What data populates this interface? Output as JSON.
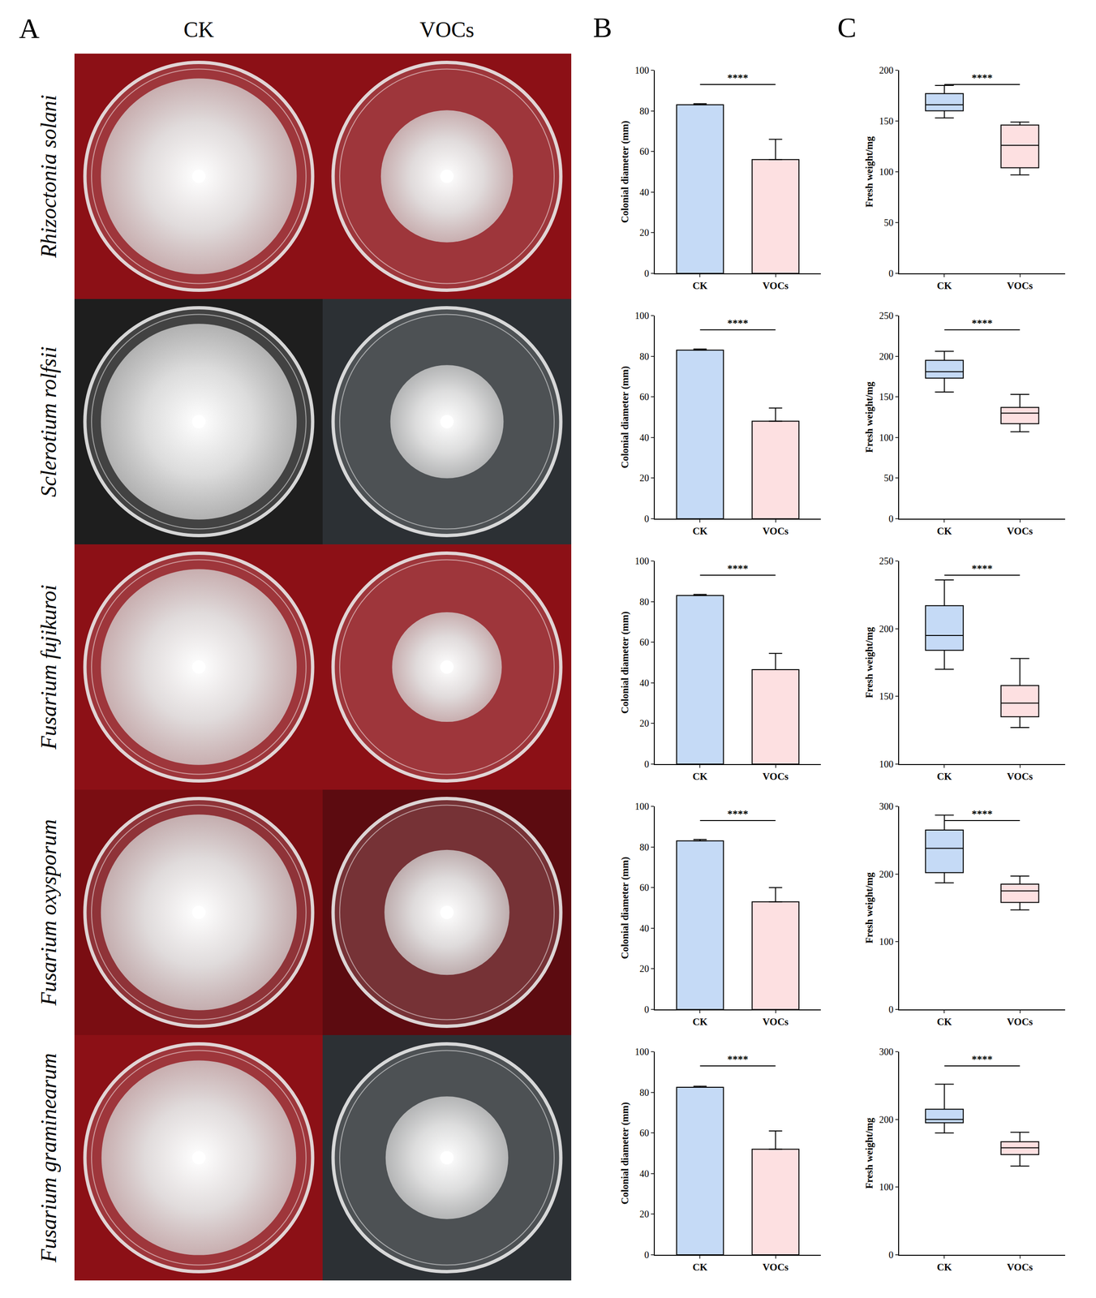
{
  "photo_panel": {
    "label": "A",
    "columns": [
      "CK",
      "VOCs"
    ]
  },
  "chart_data": [
    {
      "panel": "B",
      "species": "Rhizoctonia solani",
      "type": "bar",
      "categories": [
        "CK",
        "VOCs"
      ],
      "values": [
        83,
        56
      ],
      "errors": [
        0.5,
        10
      ],
      "colors": [
        "#c5daf6",
        "#fde0e1"
      ],
      "ylim": [
        0,
        100
      ],
      "yticks": [
        0,
        20,
        40,
        60,
        80,
        100
      ],
      "y_label": "Colonial diameter (mm)",
      "significance": "****"
    },
    {
      "panel": "C",
      "species": "Rhizoctonia solani",
      "type": "box",
      "categories": [
        "CK",
        "VOCs"
      ],
      "min": [
        153,
        97
      ],
      "q1": [
        160,
        104
      ],
      "median": [
        166,
        126
      ],
      "q3": [
        177,
        146
      ],
      "max": [
        185,
        149
      ],
      "colors": [
        "#c5daf6",
        "#fde0e1"
      ],
      "ylim": [
        0,
        200
      ],
      "yticks": [
        0,
        50,
        100,
        150,
        200
      ],
      "y_label": "Fresh weight/mg",
      "significance": "****"
    },
    {
      "panel": "B",
      "species": "Sclerotium rolfsii",
      "type": "bar",
      "categories": [
        "CK",
        "VOCs"
      ],
      "values": [
        83,
        48
      ],
      "errors": [
        0.5,
        6.5
      ],
      "colors": [
        "#c5daf6",
        "#fde0e1"
      ],
      "ylim": [
        0,
        100
      ],
      "yticks": [
        0,
        20,
        40,
        60,
        80,
        100
      ],
      "y_label": "Colonial diameter (mm)",
      "significance": "****"
    },
    {
      "panel": "C",
      "species": "Sclerotium rolfsii",
      "type": "box",
      "categories": [
        "CK",
        "VOCs"
      ],
      "min": [
        156,
        107
      ],
      "q1": [
        173,
        117
      ],
      "median": [
        181,
        130
      ],
      "q3": [
        195,
        137
      ],
      "max": [
        206,
        153
      ],
      "colors": [
        "#c5daf6",
        "#fde0e1"
      ],
      "ylim": [
        0,
        250
      ],
      "yticks": [
        0,
        50,
        100,
        150,
        200,
        250
      ],
      "y_label": "Fresh weight/mg",
      "significance": "****"
    },
    {
      "panel": "B",
      "species": "Fusarium fujikuroi",
      "type": "bar",
      "categories": [
        "CK",
        "VOCs"
      ],
      "values": [
        83,
        46.5
      ],
      "errors": [
        0.5,
        8
      ],
      "colors": [
        "#c5daf6",
        "#fde0e1"
      ],
      "ylim": [
        0,
        100
      ],
      "yticks": [
        0,
        20,
        40,
        60,
        80,
        100
      ],
      "y_label": "Colonial diameter (mm)",
      "significance": "****"
    },
    {
      "panel": "C",
      "species": "Fusarium fujikuroi",
      "type": "box",
      "categories": [
        "CK",
        "VOCs"
      ],
      "min": [
        170,
        127
      ],
      "q1": [
        184,
        135
      ],
      "median": [
        195,
        145
      ],
      "q3": [
        217,
        158
      ],
      "max": [
        236,
        178
      ],
      "colors": [
        "#c5daf6",
        "#fde0e1"
      ],
      "ylim": [
        100,
        250
      ],
      "yticks": [
        100,
        150,
        200,
        250
      ],
      "y_label": "Fresh weight/mg",
      "significance": "****"
    },
    {
      "panel": "B",
      "species": "Fusarium oxysporum",
      "type": "bar",
      "categories": [
        "CK",
        "VOCs"
      ],
      "values": [
        83,
        53
      ],
      "errors": [
        0.7,
        7
      ],
      "colors": [
        "#c5daf6",
        "#fde0e1"
      ],
      "ylim": [
        0,
        100
      ],
      "yticks": [
        0,
        20,
        40,
        60,
        80,
        100
      ],
      "y_label": "Colonial diameter (mm)",
      "significance": "****"
    },
    {
      "panel": "C",
      "species": "Fusarium oxysporum",
      "type": "box",
      "categories": [
        "CK",
        "VOCs"
      ],
      "min": [
        187,
        147
      ],
      "q1": [
        202,
        158
      ],
      "median": [
        238,
        175
      ],
      "q3": [
        265,
        185
      ],
      "max": [
        287,
        197
      ],
      "colors": [
        "#c5daf6",
        "#fde0e1"
      ],
      "ylim": [
        0,
        300
      ],
      "yticks": [
        0,
        100,
        200,
        300
      ],
      "y_label": "Fresh weight/mg",
      "significance": "****"
    },
    {
      "panel": "B",
      "species": "Fusarium graminearum",
      "type": "bar",
      "categories": [
        "CK",
        "VOCs"
      ],
      "values": [
        82.5,
        52
      ],
      "errors": [
        0.5,
        9
      ],
      "colors": [
        "#c5daf6",
        "#fde0e1"
      ],
      "ylim": [
        0,
        100
      ],
      "yticks": [
        0,
        20,
        40,
        60,
        80,
        100
      ],
      "y_label": "Colonial diameter (mm)",
      "significance": "****"
    },
    {
      "panel": "C",
      "species": "Fusarium graminearum",
      "type": "box",
      "categories": [
        "CK",
        "VOCs"
      ],
      "min": [
        180,
        131
      ],
      "q1": [
        195,
        148
      ],
      "median": [
        200,
        158
      ],
      "q3": [
        215,
        167
      ],
      "max": [
        252,
        181
      ],
      "colors": [
        "#c5daf6",
        "#fde0e1"
      ],
      "ylim": [
        0,
        300
      ],
      "yticks": [
        0,
        100,
        200,
        300
      ],
      "y_label": "Fresh weight/mg",
      "significance": "****"
    }
  ]
}
